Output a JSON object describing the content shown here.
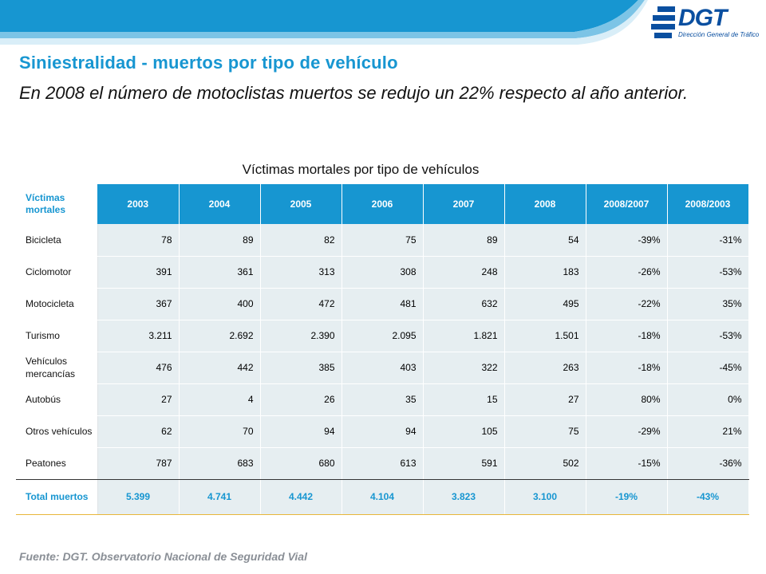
{
  "header": {
    "logo_text": "DGT",
    "logo_subtitle": "Dirección General de Tráfico"
  },
  "title": "Siniestralidad - muertos por tipo de vehículo",
  "subtitle": "En 2008 el número de motoclistas muertos se redujo un 22% respecto al año anterior.",
  "table": {
    "caption": "Víctimas mortales por tipo de vehículos",
    "corner_label": "Víctimas mortales",
    "columns": [
      "2003",
      "2004",
      "2005",
      "2006",
      "2007",
      "2008",
      "2008/2007",
      "2008/2003"
    ],
    "rows": [
      {
        "label": "Bicicleta",
        "values": [
          "78",
          "89",
          "82",
          "75",
          "89",
          "54",
          "-39%",
          "-31%"
        ]
      },
      {
        "label": "Ciclomotor",
        "values": [
          "391",
          "361",
          "313",
          "308",
          "248",
          "183",
          "-26%",
          "-53%"
        ]
      },
      {
        "label": "Motocicleta",
        "values": [
          "367",
          "400",
          "472",
          "481",
          "632",
          "495",
          "-22%",
          "35%"
        ]
      },
      {
        "label": "Turismo",
        "values": [
          "3.211",
          "2.692",
          "2.390",
          "2.095",
          "1.821",
          "1.501",
          "-18%",
          "-53%"
        ]
      },
      {
        "label": "Vehículos mercancías",
        "values": [
          "476",
          "442",
          "385",
          "403",
          "322",
          "263",
          "-18%",
          "-45%"
        ]
      },
      {
        "label": "Autobús",
        "values": [
          "27",
          "4",
          "26",
          "35",
          "15",
          "27",
          "80%",
          "0%"
        ]
      },
      {
        "label": "Otros vehículos",
        "values": [
          "62",
          "70",
          "94",
          "94",
          "105",
          "75",
          "-29%",
          "21%"
        ]
      },
      {
        "label": "Peatones",
        "values": [
          "787",
          "683",
          "680",
          "613",
          "591",
          "502",
          "-15%",
          "-36%"
        ]
      }
    ],
    "total": {
      "label": "Total muertos",
      "values": [
        "5.399",
        "4.741",
        "4.442",
        "4.104",
        "3.823",
        "3.100",
        "-19%",
        "-43%"
      ]
    }
  },
  "source": "Fuente: DGT. Observatorio Nacional de Seguridad Vial",
  "colors": {
    "accent": "#1796d1",
    "cell_bg": "#e6eef1",
    "source_text": "#8a8f96",
    "logo": "#0a4fa0",
    "total_rule": "#e8b63a"
  }
}
